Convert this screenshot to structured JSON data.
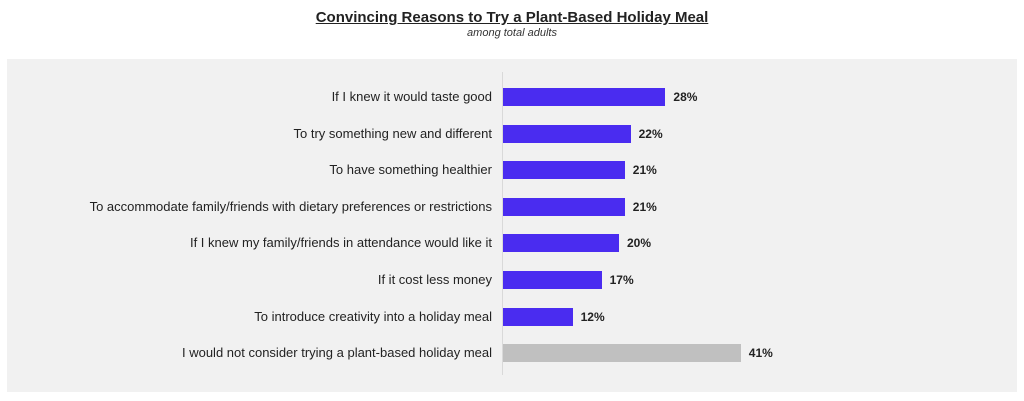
{
  "title": "Convincing Reasons to Try a Plant-Based Holiday Meal",
  "subtitle": "among total adults",
  "colors": {
    "primary": "#4a2cf0",
    "secondary": "#c0c0c0",
    "panel": "#f1f1f1"
  },
  "rows": [
    {
      "label": "If I knew it would taste good",
      "value": 28,
      "display": "28%",
      "color": "#4a2cf0"
    },
    {
      "label": "To try something new and different",
      "value": 22,
      "display": "22%",
      "color": "#4a2cf0"
    },
    {
      "label": "To have something healthier",
      "value": 21,
      "display": "21%",
      "color": "#4a2cf0"
    },
    {
      "label": "To accommodate family/friends with dietary preferences or restrictions",
      "value": 21,
      "display": "21%",
      "color": "#4a2cf0"
    },
    {
      "label": "If I knew my family/friends in attendance would like it",
      "value": 20,
      "display": "20%",
      "color": "#4a2cf0"
    },
    {
      "label": "If it cost less money",
      "value": 17,
      "display": "17%",
      "color": "#4a2cf0"
    },
    {
      "label": "To introduce creativity into a holiday meal",
      "value": 12,
      "display": "12%",
      "color": "#4a2cf0"
    },
    {
      "label": "I would not consider trying a plant-based holiday meal",
      "value": 41,
      "display": "41%",
      "color": "#c0c0c0"
    }
  ],
  "chart_data": {
    "type": "bar",
    "orientation": "horizontal",
    "title": "Convincing Reasons to Try a Plant-Based Holiday Meal",
    "subtitle": "among total adults",
    "categories": [
      "If I knew it would taste good",
      "To try something new and different",
      "To have something healthier",
      "To accommodate family/friends with dietary preferences or restrictions",
      "If I knew my family/friends in attendance would like it",
      "If it cost less money",
      "To introduce creativity into a holiday meal",
      "I would not consider trying a plant-based holiday meal"
    ],
    "values": [
      28,
      22,
      21,
      21,
      20,
      17,
      12,
      41
    ],
    "value_labels": [
      "28%",
      "22%",
      "21%",
      "21%",
      "20%",
      "17%",
      "12%",
      "41%"
    ],
    "unit": "%",
    "xlabel": "",
    "ylabel": "",
    "grid": false,
    "legend": "none"
  }
}
